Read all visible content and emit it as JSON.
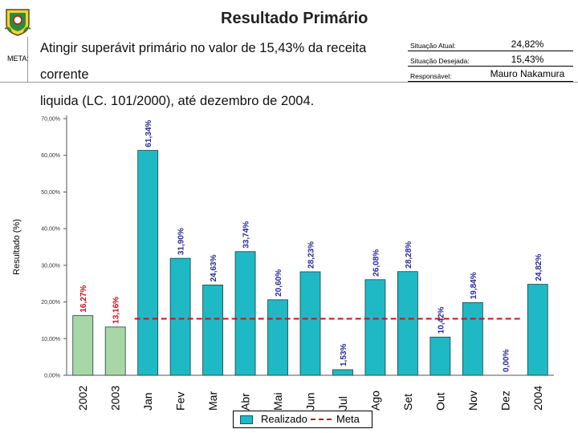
{
  "header": {
    "title": "Resultado Primário",
    "meta_label": "META:",
    "goal_line1": "Atingir superávit primário no valor de 15,43%  da receita corrente",
    "goal_line2": "liquida (LC. 101/2000), até dezembro de 2004.",
    "situacao_atual_label": "Situação Atual:",
    "situacao_atual_value": "24,82%",
    "situacao_desejada_label": "Situação Desejada:",
    "situacao_desejada_value": "15,43%",
    "responsavel_label": "Responsável:",
    "responsavel_value": "Mauro Nakamura"
  },
  "chart_data": {
    "type": "bar",
    "ylabel": "Resultado (%)",
    "ylim": [
      0,
      70
    ],
    "yticks": [
      "0,00%",
      "10,00%",
      "20,00%",
      "30,00%",
      "40,00%",
      "50,00%",
      "60,00%",
      "70,00%"
    ],
    "categories": [
      "2002",
      "2003",
      "Jan",
      "Fev",
      "Mar",
      "Abr",
      "Mai",
      "Jun",
      "Jul",
      "Ago",
      "Set",
      "Out",
      "Nov",
      "Dez",
      "2004"
    ],
    "series": [
      {
        "name": "Realizado",
        "values": [
          16.27,
          13.16,
          61.34,
          31.9,
          24.63,
          33.74,
          20.6,
          28.23,
          1.53,
          26.08,
          28.28,
          10.42,
          19.84,
          0.0,
          24.82
        ],
        "labels": [
          "16,27%",
          "13,16%",
          "61,34%",
          "31,90%",
          "24,63%",
          "33,74%",
          "20,60%",
          "28,23%",
          "1,53%",
          "26,08%",
          "28,28%",
          "10,42%",
          "19,84%",
          "0,00%",
          "24,82%"
        ],
        "annual_color": "#a8d7a6",
        "monthly_color": "#1fb9c6",
        "annual_label_color": "#c0151c",
        "monthly_label_color": "#2a2a9c"
      },
      {
        "name": "Meta",
        "value": 15.43,
        "color": "#c0151c"
      }
    ],
    "legend": [
      "Realizado",
      "Meta"
    ],
    "legend_position": "bottom"
  }
}
